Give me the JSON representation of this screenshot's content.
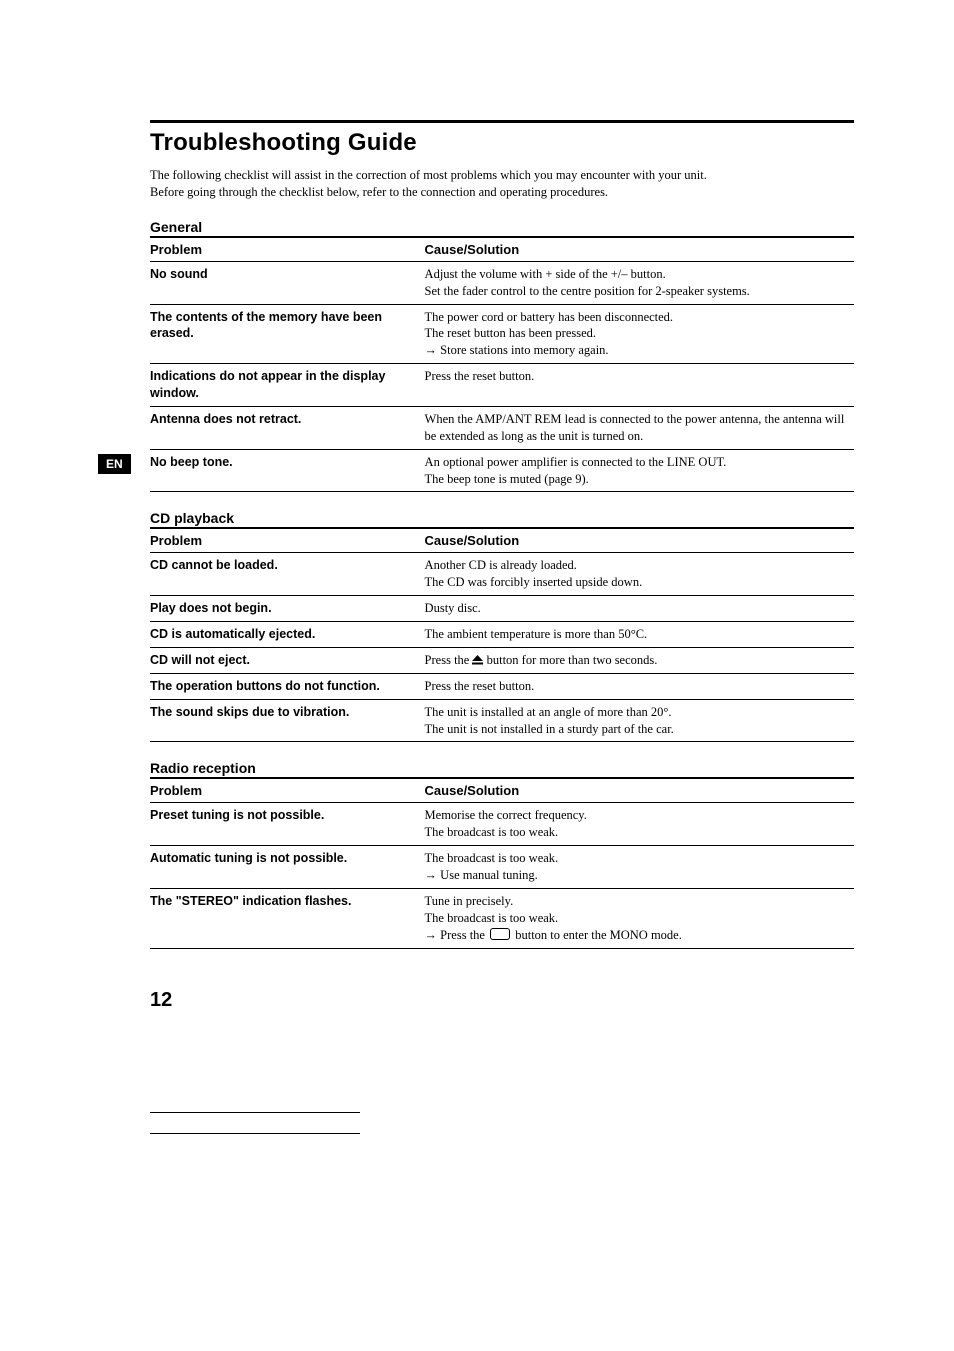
{
  "title": "Troubleshooting Guide",
  "intro_line1": "The following checklist will assist in the correction of most problems which you may encounter with your unit.",
  "intro_line2": "Before going through the checklist below, refer to the connection and operating procedures.",
  "en_tab": "EN",
  "page_number": "12",
  "headers": {
    "problem": "Problem",
    "cause": "Cause/Solution"
  },
  "sections": {
    "general": {
      "label": "General",
      "rows": [
        {
          "p": "No sound",
          "s": "Adjust the volume with + side of the +/– button.\nSet the fader control to the centre position for 2-speaker systems."
        },
        {
          "p": "The contents of the memory have been erased.",
          "s": "The power cord or battery has been disconnected.\nThe reset button has been pressed.\n→ Store stations into memory again."
        },
        {
          "p": "Indications do not appear in the display window.",
          "s": "Press the reset button."
        },
        {
          "p": "Antenna does not retract.",
          "s": "When the AMP/ANT REM lead is connected to the power antenna, the antenna will be extended as long as the unit is turned on."
        },
        {
          "p": "No beep tone.",
          "s": "An optional power amplifier is connected to the LINE OUT.\nThe beep tone is muted (page 9)."
        }
      ]
    },
    "cd": {
      "label": "CD playback",
      "rows": [
        {
          "p": "CD cannot be loaded.",
          "s": "Another CD is already loaded.\nThe CD was forcibly inserted upside down."
        },
        {
          "p": "Play does not begin.",
          "s": "Dusty disc."
        },
        {
          "p": "CD is automatically ejected.",
          "s": "The ambient temperature is more than 50°C."
        },
        {
          "p": "CD will not eject.",
          "s": "Press the ⏏ button for more than two seconds."
        },
        {
          "p": "The operation buttons do not function.",
          "s": "Press the reset button."
        },
        {
          "p": "The sound skips due to vibration.",
          "s": "The unit is installed at an angle of more than 20°.\nThe unit is not installed in a sturdy part of the car."
        }
      ]
    },
    "radio": {
      "label": "Radio reception",
      "rows": [
        {
          "p": "Preset tuning is not possible.",
          "s": "Memorise the correct frequency.\nThe broadcast is too weak."
        },
        {
          "p": "Automatic tuning is not possible.",
          "s": "The broadcast is too weak.\n→ Use manual tuning."
        },
        {
          "p": "The \"STEREO\" indication flashes.",
          "s": "Tune in precisely.\nThe broadcast is too weak.\n→ Press the ▭ button to enter the MONO mode."
        }
      ]
    }
  }
}
